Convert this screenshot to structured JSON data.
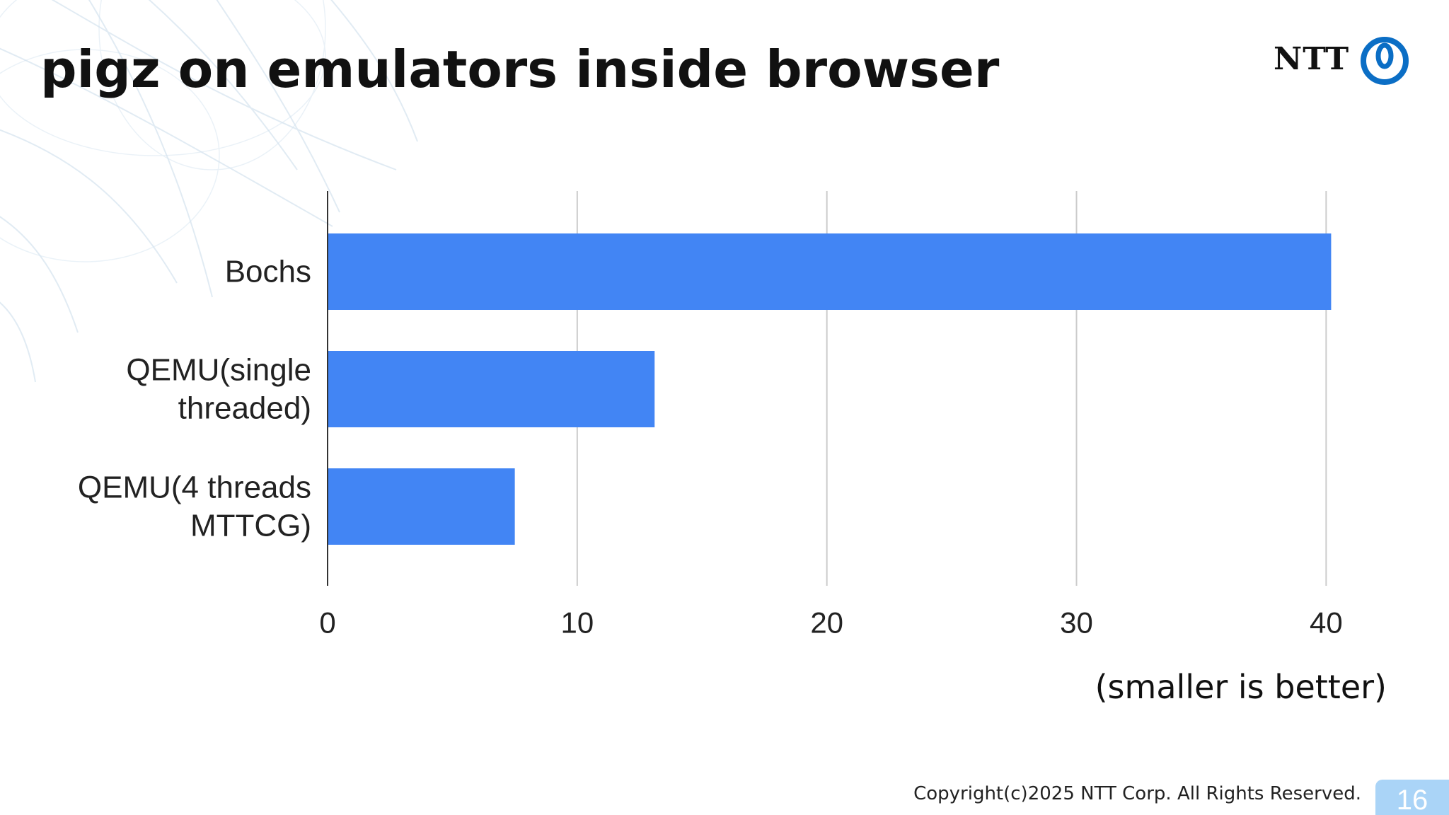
{
  "slide": {
    "title": "pigz on emulators inside browser",
    "logo_text": "NTT",
    "note": "(smaller is better)",
    "copyright": "Copyright(c)2025 NTT Corp. All Rights Reserved.",
    "page_number": "16"
  },
  "colors": {
    "bar": "#4285f4",
    "logo_mark": "#0b6ec5",
    "gridline": "#cccccc",
    "axis": "#333333",
    "page_badge": "#aad4f7"
  },
  "chart_data": {
    "type": "bar",
    "orientation": "horizontal",
    "categories": [
      [
        "QEMU(4 threads",
        "MTTCG)"
      ],
      [
        "QEMU(single",
        "threaded)"
      ],
      [
        "Bochs"
      ]
    ],
    "values": [
      7.5,
      13.1,
      40.2
    ],
    "x_ticks": [
      0,
      10,
      20,
      30,
      40
    ],
    "xlim": [
      0,
      40.5
    ],
    "grid": true,
    "legend": "none",
    "title": "",
    "xlabel": "",
    "ylabel": ""
  }
}
